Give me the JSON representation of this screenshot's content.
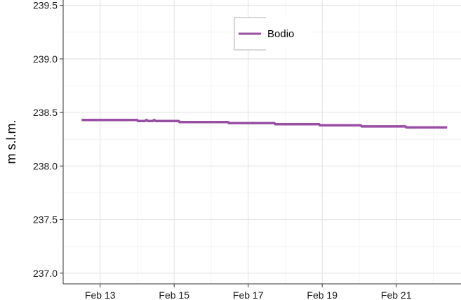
{
  "chart_data": {
    "type": "line",
    "title": "",
    "xlabel": "",
    "ylabel": "m s.l.m.",
    "x_axis": {
      "type": "date",
      "range": [
        "2020-02-12",
        "2020-02-22 18:00"
      ],
      "ticks": [
        {
          "value": "2020-02-13",
          "label": "Feb 13"
        },
        {
          "value": "2020-02-15",
          "label": "Feb 15"
        },
        {
          "value": "2020-02-17",
          "label": "Feb 17"
        },
        {
          "value": "2020-02-19",
          "label": "Feb 19"
        },
        {
          "value": "2020-02-21",
          "label": "Feb 21"
        }
      ]
    },
    "ylim": [
      236.9,
      239.55
    ],
    "y_ticks": [
      {
        "value": 237.0,
        "label": "237.0"
      },
      {
        "value": 237.5,
        "label": "237.5"
      },
      {
        "value": 238.0,
        "label": "238.0"
      },
      {
        "value": 238.5,
        "label": "238.5"
      },
      {
        "value": 239.0,
        "label": "239.0"
      },
      {
        "value": 239.5,
        "label": "239.5"
      }
    ],
    "grid": true,
    "legend_position": "top-center",
    "series": [
      {
        "name": "Bodio",
        "color": "#984ea3",
        "points": [
          {
            "x": "2020-02-12 12:00",
            "y": 238.43
          },
          {
            "x": "2020-02-14 00:00",
            "y": 238.43
          },
          {
            "x": "2020-02-14 00:30",
            "y": 238.42
          },
          {
            "x": "2020-02-14 05:00",
            "y": 238.42
          },
          {
            "x": "2020-02-14 06:00",
            "y": 238.43
          },
          {
            "x": "2020-02-14 07:00",
            "y": 238.42
          },
          {
            "x": "2020-02-14 10:00",
            "y": 238.42
          },
          {
            "x": "2020-02-14 11:00",
            "y": 238.43
          },
          {
            "x": "2020-02-14 12:00",
            "y": 238.42
          },
          {
            "x": "2020-02-15 03:00",
            "y": 238.42
          },
          {
            "x": "2020-02-15 03:30",
            "y": 238.41
          },
          {
            "x": "2020-02-16 11:00",
            "y": 238.41
          },
          {
            "x": "2020-02-16 11:30",
            "y": 238.4
          },
          {
            "x": "2020-02-17 17:00",
            "y": 238.4
          },
          {
            "x": "2020-02-17 17:30",
            "y": 238.39
          },
          {
            "x": "2020-02-18 22:00",
            "y": 238.39
          },
          {
            "x": "2020-02-18 22:30",
            "y": 238.38
          },
          {
            "x": "2020-02-20 01:00",
            "y": 238.38
          },
          {
            "x": "2020-02-20 01:30",
            "y": 238.37
          },
          {
            "x": "2020-02-21 06:00",
            "y": 238.37
          },
          {
            "x": "2020-02-21 06:30",
            "y": 238.36
          },
          {
            "x": "2020-02-22 09:00",
            "y": 238.36
          }
        ]
      }
    ]
  }
}
